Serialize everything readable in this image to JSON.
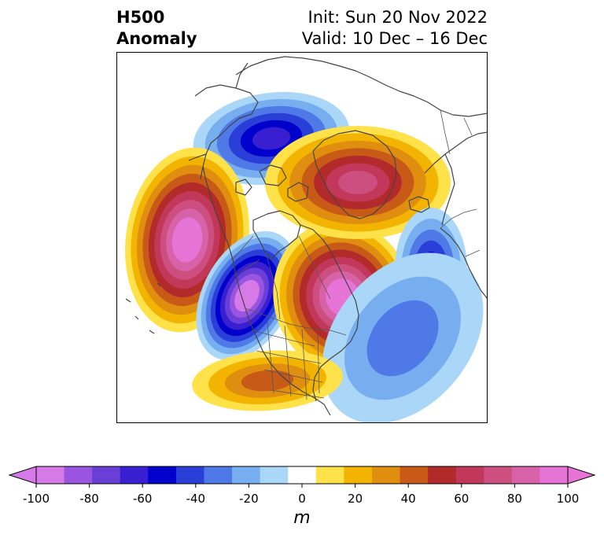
{
  "title": {
    "left_line1": "H500",
    "left_line2": "Anomaly",
    "right_line1": "Init: Sun 20 Nov 2022",
    "right_line2": "Valid: 10 Dec – 16 Dec"
  },
  "colorbar": {
    "unit": "m",
    "tick_labels": [
      "-100",
      "-80",
      "-60",
      "-40",
      "-20",
      "0",
      "20",
      "40",
      "60",
      "80",
      "100"
    ],
    "colors": [
      "#d67ae8",
      "#9a55e0",
      "#6a3fd8",
      "#3a1fd0",
      "#0000cc",
      "#2a3fd8",
      "#4f79e6",
      "#77aef0",
      "#aad6f8",
      "#ffffff",
      "#ffe14a",
      "#f2b400",
      "#e08e10",
      "#c85a18",
      "#b22a2a",
      "#c2385a",
      "#cc4f80",
      "#d862a8",
      "#e673d6"
    ],
    "below_color": "#d67ae8",
    "above_color": "#e673d6"
  },
  "anomalies": [
    {
      "name": "canadian-arctic-trough",
      "sign": "negative",
      "peak_m": -60
    },
    {
      "name": "northeast-pacific-ridge",
      "sign": "positive",
      "peak_m": 100
    },
    {
      "name": "western-north-america-trough",
      "sign": "negative",
      "peak_m": -100
    },
    {
      "name": "greenland-ridge",
      "sign": "positive",
      "peak_m": 100
    },
    {
      "name": "scandinavian-ridge",
      "sign": "positive",
      "peak_m": 70
    },
    {
      "name": "european-trough",
      "sign": "negative",
      "peak_m": -50
    },
    {
      "name": "north-atlantic-trough",
      "sign": "negative",
      "peak_m": -30
    },
    {
      "name": "southeast-us-ridge",
      "sign": "positive",
      "peak_m": 40
    }
  ]
}
